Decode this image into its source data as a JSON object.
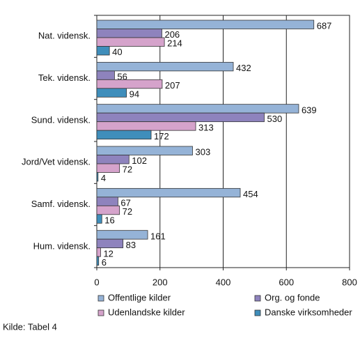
{
  "chart_data": {
    "type": "bar",
    "orientation": "horizontal",
    "categories": [
      "Nat. vidensk.",
      "Tek. vidensk.",
      "Sund. vidensk.",
      "Jord/Vet vidensk.",
      "Samf. vidensk.",
      "Hum. vidensk."
    ],
    "series": [
      {
        "name": "Offentlige kilder",
        "color": "#95b3d7",
        "values": [
          687,
          432,
          639,
          303,
          454,
          161
        ]
      },
      {
        "name": "Org. og fonde",
        "color": "#8e83bd",
        "values": [
          206,
          56,
          530,
          102,
          67,
          83
        ]
      },
      {
        "name": "Udenlandske kilder",
        "color": "#d5a3cb",
        "values": [
          214,
          207,
          313,
          72,
          72,
          12
        ]
      },
      {
        "name": "Danske virksomheder",
        "color": "#3f8ebb",
        "values": [
          40,
          94,
          172,
          4,
          16,
          6
        ]
      }
    ],
    "xlim": [
      0,
      800
    ],
    "xticks": [
      0,
      200,
      400,
      600,
      800
    ],
    "grid": true,
    "legend": "bottom",
    "source": "Kilde: Tabel 4"
  }
}
